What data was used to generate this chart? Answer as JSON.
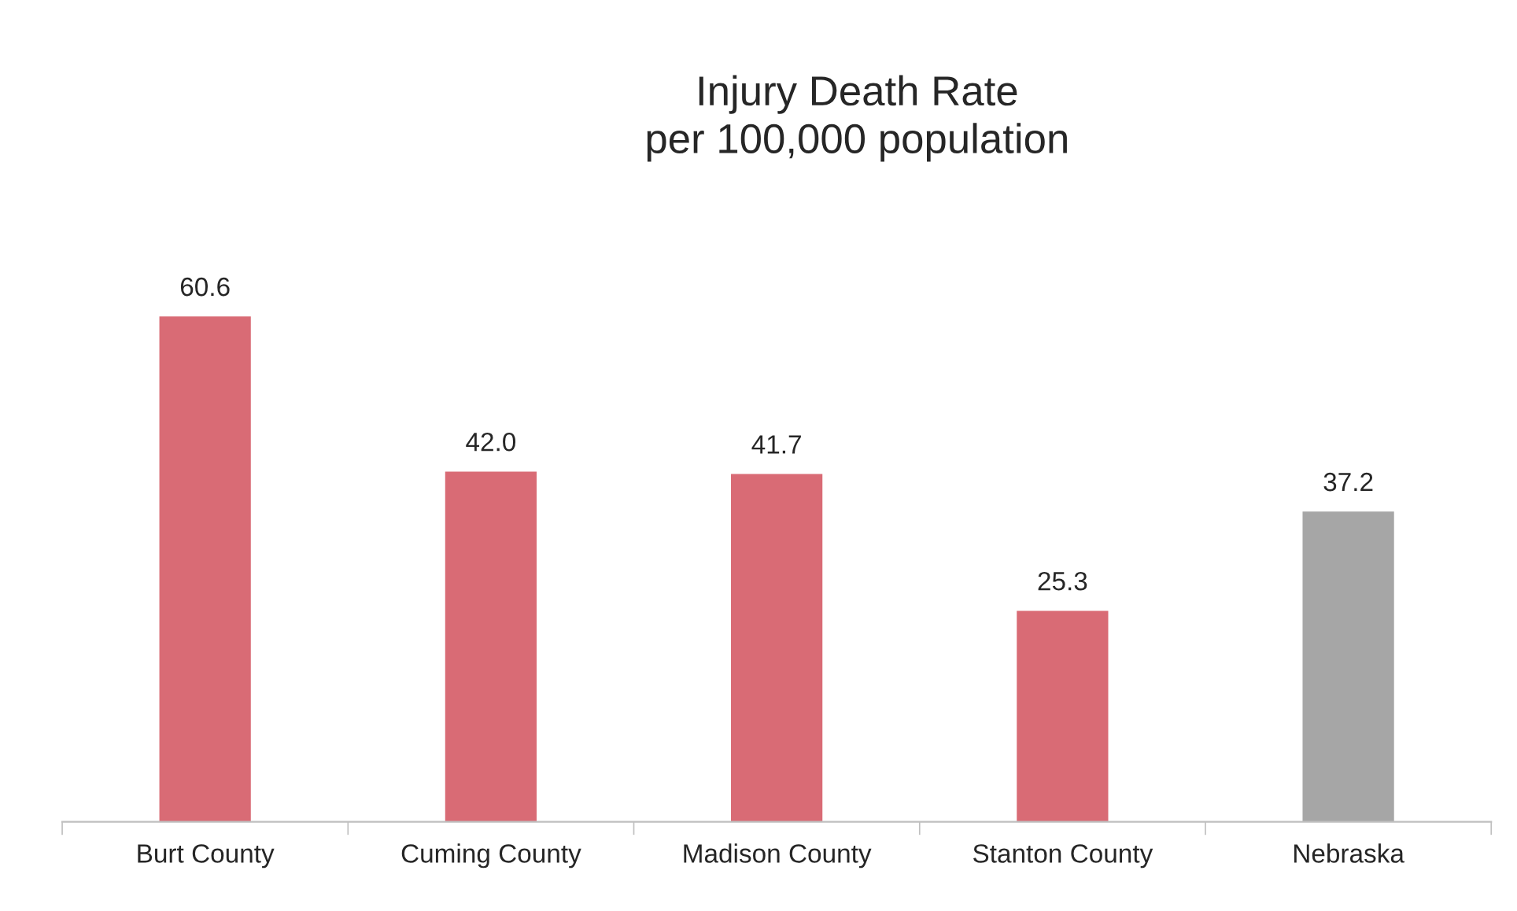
{
  "chart_data": {
    "type": "bar",
    "title": "Injury Death Rate\nper 100,000 population",
    "categories": [
      "Burt County",
      "Cuming County",
      "Madison County",
      "Stanton County",
      "Nebraska"
    ],
    "values": [
      60.6,
      42.0,
      41.7,
      25.3,
      37.2
    ],
    "colors": [
      "#d96b75",
      "#d96b75",
      "#d96b75",
      "#d96b75",
      "#a6a6a6"
    ],
    "value_labels": [
      "60.6",
      "42.0",
      "41.7",
      "25.3",
      "37.2"
    ],
    "grid": false,
    "legend": false,
    "tick_labels": "x"
  }
}
